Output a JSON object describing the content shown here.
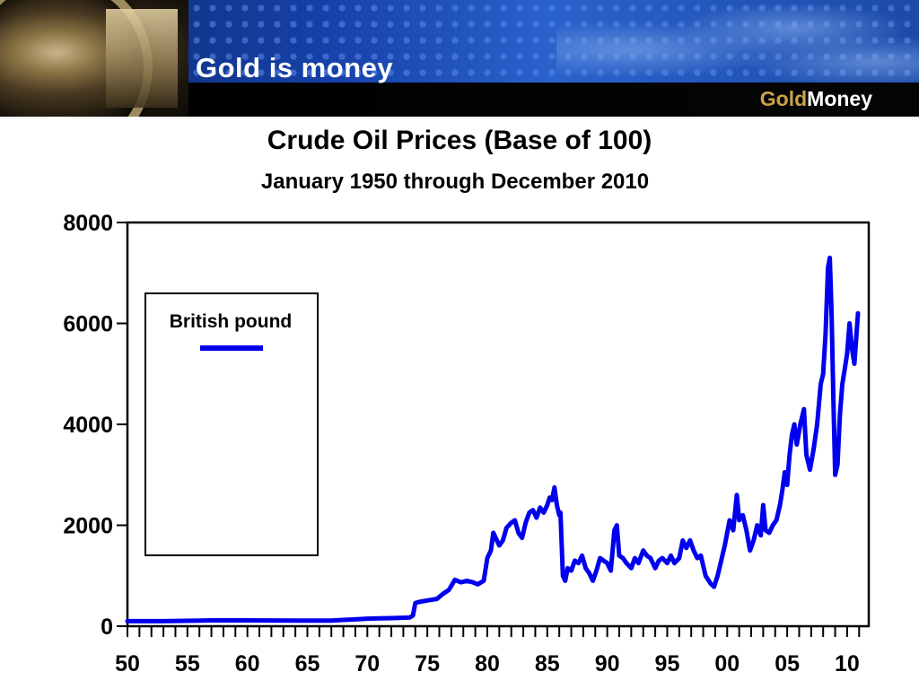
{
  "header": {
    "title": "Gold is money",
    "brand_part1": "Gold",
    "brand_part2": "Money",
    "brand_gold_color": "#c9a24a"
  },
  "chart_data": {
    "type": "line",
    "title": "Crude Oil Prices (Base of 100)",
    "subtitle": "January 1950 through December 2010",
    "xlabel": "",
    "ylabel": "",
    "xlim": [
      1950,
      2011.8
    ],
    "ylim": [
      0,
      8000
    ],
    "yticks": [
      0,
      2000,
      4000,
      6000,
      8000
    ],
    "xtick_labels": [
      {
        "year": 1950,
        "label": "50"
      },
      {
        "year": 1955,
        "label": "55"
      },
      {
        "year": 1960,
        "label": "60"
      },
      {
        "year": 1965,
        "label": "65"
      },
      {
        "year": 1970,
        "label": "70"
      },
      {
        "year": 1975,
        "label": "75"
      },
      {
        "year": 1980,
        "label": "80"
      },
      {
        "year": 1985,
        "label": "85"
      },
      {
        "year": 1990,
        "label": "90"
      },
      {
        "year": 1995,
        "label": "95"
      },
      {
        "year": 2000,
        "label": "00"
      },
      {
        "year": 2005,
        "label": "05"
      },
      {
        "year": 2010,
        "label": "10"
      }
    ],
    "legend": {
      "position": "upper-left",
      "label": "British pound",
      "color": "#0000ee"
    },
    "series": [
      {
        "name": "British pound",
        "color": "#0000ee",
        "points": [
          [
            1950.0,
            100
          ],
          [
            1953.0,
            100
          ],
          [
            1956.0,
            110
          ],
          [
            1957.0,
            115
          ],
          [
            1960.0,
            115
          ],
          [
            1964.0,
            110
          ],
          [
            1967.0,
            110
          ],
          [
            1968.0,
            125
          ],
          [
            1969.0,
            135
          ],
          [
            1970.0,
            150
          ],
          [
            1971.0,
            155
          ],
          [
            1972.0,
            160
          ],
          [
            1973.5,
            170
          ],
          [
            1973.8,
            210
          ],
          [
            1974.0,
            460
          ],
          [
            1974.3,
            480
          ],
          [
            1975.0,
            510
          ],
          [
            1975.8,
            540
          ],
          [
            1976.3,
            640
          ],
          [
            1976.8,
            720
          ],
          [
            1977.3,
            920
          ],
          [
            1977.8,
            870
          ],
          [
            1978.3,
            900
          ],
          [
            1978.8,
            870
          ],
          [
            1979.2,
            830
          ],
          [
            1979.7,
            900
          ],
          [
            1980.0,
            1350
          ],
          [
            1980.3,
            1500
          ],
          [
            1980.5,
            1850
          ],
          [
            1980.8,
            1700
          ],
          [
            1981.0,
            1600
          ],
          [
            1981.3,
            1700
          ],
          [
            1981.6,
            1950
          ],
          [
            1982.0,
            2050
          ],
          [
            1982.3,
            2100
          ],
          [
            1982.6,
            1850
          ],
          [
            1982.9,
            1750
          ],
          [
            1983.2,
            2050
          ],
          [
            1983.5,
            2250
          ],
          [
            1983.8,
            2300
          ],
          [
            1984.1,
            2150
          ],
          [
            1984.4,
            2350
          ],
          [
            1984.7,
            2250
          ],
          [
            1985.0,
            2400
          ],
          [
            1985.2,
            2550
          ],
          [
            1985.4,
            2500
          ],
          [
            1985.6,
            2750
          ],
          [
            1985.8,
            2400
          ],
          [
            1986.0,
            2200
          ],
          [
            1986.1,
            2250
          ],
          [
            1986.3,
            1000
          ],
          [
            1986.5,
            900
          ],
          [
            1986.7,
            1150
          ],
          [
            1987.0,
            1100
          ],
          [
            1987.3,
            1300
          ],
          [
            1987.6,
            1250
          ],
          [
            1987.9,
            1400
          ],
          [
            1988.2,
            1150
          ],
          [
            1988.5,
            1050
          ],
          [
            1988.8,
            900
          ],
          [
            1989.1,
            1100
          ],
          [
            1989.4,
            1350
          ],
          [
            1989.7,
            1300
          ],
          [
            1990.0,
            1250
          ],
          [
            1990.3,
            1100
          ],
          [
            1990.6,
            1900
          ],
          [
            1990.8,
            2000
          ],
          [
            1991.0,
            1400
          ],
          [
            1991.3,
            1350
          ],
          [
            1991.6,
            1250
          ],
          [
            1992.0,
            1150
          ],
          [
            1992.3,
            1350
          ],
          [
            1992.6,
            1250
          ],
          [
            1993.0,
            1500
          ],
          [
            1993.3,
            1400
          ],
          [
            1993.6,
            1350
          ],
          [
            1994.0,
            1150
          ],
          [
            1994.3,
            1300
          ],
          [
            1994.6,
            1350
          ],
          [
            1995.0,
            1250
          ],
          [
            1995.3,
            1400
          ],
          [
            1995.6,
            1250
          ],
          [
            1996.0,
            1350
          ],
          [
            1996.3,
            1700
          ],
          [
            1996.6,
            1550
          ],
          [
            1996.9,
            1700
          ],
          [
            1997.2,
            1500
          ],
          [
            1997.5,
            1350
          ],
          [
            1997.8,
            1400
          ],
          [
            1998.2,
            1000
          ],
          [
            1998.6,
            850
          ],
          [
            1998.9,
            780
          ],
          [
            1999.2,
            1000
          ],
          [
            1999.5,
            1300
          ],
          [
            1999.8,
            1600
          ],
          [
            2000.2,
            2100
          ],
          [
            2000.5,
            1900
          ],
          [
            2000.8,
            2600
          ],
          [
            2001.0,
            2100
          ],
          [
            2001.3,
            2200
          ],
          [
            2001.6,
            1900
          ],
          [
            2001.9,
            1500
          ],
          [
            2002.2,
            1700
          ],
          [
            2002.5,
            2000
          ],
          [
            2002.8,
            1800
          ],
          [
            2003.0,
            2400
          ],
          [
            2003.2,
            1900
          ],
          [
            2003.5,
            1850
          ],
          [
            2003.8,
            2000
          ],
          [
            2004.1,
            2100
          ],
          [
            2004.4,
            2400
          ],
          [
            2004.6,
            2700
          ],
          [
            2004.8,
            3050
          ],
          [
            2005.0,
            2800
          ],
          [
            2005.2,
            3400
          ],
          [
            2005.4,
            3800
          ],
          [
            2005.6,
            4000
          ],
          [
            2005.8,
            3600
          ],
          [
            2006.1,
            4000
          ],
          [
            2006.4,
            4300
          ],
          [
            2006.6,
            3400
          ],
          [
            2006.9,
            3100
          ],
          [
            2007.2,
            3500
          ],
          [
            2007.5,
            4000
          ],
          [
            2007.8,
            4800
          ],
          [
            2008.0,
            5000
          ],
          [
            2008.2,
            5800
          ],
          [
            2008.4,
            7100
          ],
          [
            2008.55,
            7300
          ],
          [
            2008.7,
            6200
          ],
          [
            2008.85,
            4500
          ],
          [
            2009.0,
            3000
          ],
          [
            2009.2,
            3200
          ],
          [
            2009.4,
            4200
          ],
          [
            2009.6,
            4800
          ],
          [
            2009.8,
            5100
          ],
          [
            2010.0,
            5400
          ],
          [
            2010.2,
            6000
          ],
          [
            2010.4,
            5500
          ],
          [
            2010.6,
            5200
          ],
          [
            2010.9,
            6200
          ]
        ]
      }
    ]
  }
}
